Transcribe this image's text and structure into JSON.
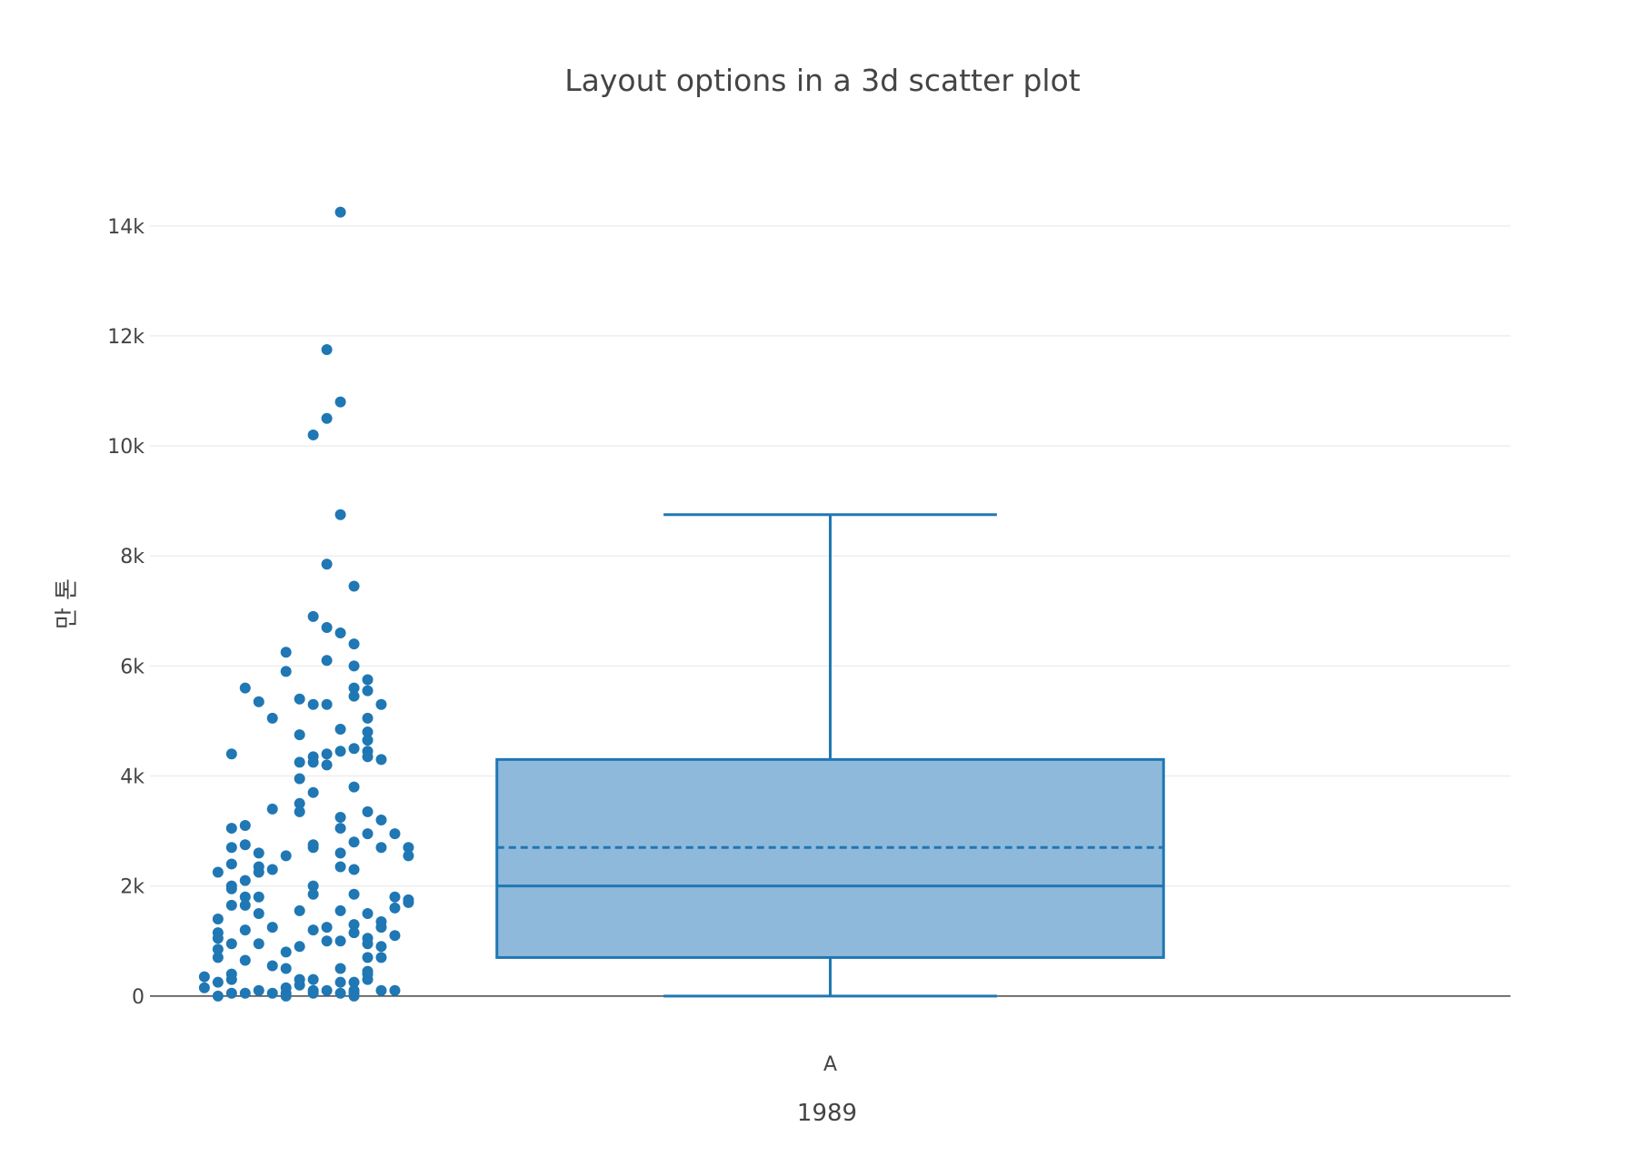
{
  "chart_data": {
    "type": "box",
    "title": "Layout options in a 3d scatter plot",
    "xlabel": "1989",
    "ylabel": "만 톤",
    "ylim": [
      -300,
      15300
    ],
    "yticks": [
      0,
      2000,
      4000,
      6000,
      8000,
      10000,
      12000,
      14000
    ],
    "ytick_labels": [
      "0",
      "2k",
      "4k",
      "6k",
      "8k",
      "10k",
      "12k",
      "14k"
    ],
    "categories": [
      "A"
    ],
    "grid": true,
    "color": "#1f77b4",
    "fill_color": "#8fb9da",
    "series": [
      {
        "category": "A",
        "box": {
          "lowerfence": 0,
          "q1": 700,
          "median": 2000,
          "mean": 2700,
          "q3": 4300,
          "upperfence": 8750
        },
        "points": [
          [
            -0.36,
            14250
          ],
          [
            -0.37,
            11750
          ],
          [
            -0.36,
            10800
          ],
          [
            -0.37,
            10500
          ],
          [
            -0.38,
            10200
          ],
          [
            -0.36,
            8750
          ],
          [
            -0.37,
            7850
          ],
          [
            -0.35,
            7450
          ],
          [
            -0.38,
            6900
          ],
          [
            -0.37,
            6700
          ],
          [
            -0.36,
            6600
          ],
          [
            -0.35,
            6400
          ],
          [
            -0.4,
            6250
          ],
          [
            -0.37,
            6100
          ],
          [
            -0.35,
            6000
          ],
          [
            -0.4,
            5900
          ],
          [
            -0.34,
            5750
          ],
          [
            -0.43,
            5600
          ],
          [
            -0.35,
            5600
          ],
          [
            -0.34,
            5550
          ],
          [
            -0.35,
            5450
          ],
          [
            -0.42,
            5350
          ],
          [
            -0.39,
            5400
          ],
          [
            -0.38,
            5300
          ],
          [
            -0.33,
            5300
          ],
          [
            -0.37,
            5300
          ],
          [
            -0.41,
            5050
          ],
          [
            -0.34,
            5050
          ],
          [
            -0.36,
            4850
          ],
          [
            -0.39,
            4750
          ],
          [
            -0.34,
            4800
          ],
          [
            -0.34,
            4650
          ],
          [
            -0.35,
            4500
          ],
          [
            -0.34,
            4450
          ],
          [
            -0.36,
            4450
          ],
          [
            -0.37,
            4400
          ],
          [
            -0.44,
            4400
          ],
          [
            -0.34,
            4350
          ],
          [
            -0.39,
            4250
          ],
          [
            -0.38,
            4250
          ],
          [
            -0.37,
            4200
          ],
          [
            -0.33,
            4300
          ],
          [
            -0.38,
            4350
          ],
          [
            -0.39,
            3950
          ],
          [
            -0.35,
            3800
          ],
          [
            -0.38,
            3700
          ],
          [
            -0.39,
            3500
          ],
          [
            -0.41,
            3400
          ],
          [
            -0.34,
            3350
          ],
          [
            -0.39,
            3350
          ],
          [
            -0.36,
            3250
          ],
          [
            -0.33,
            3200
          ],
          [
            -0.43,
            3100
          ],
          [
            -0.44,
            3050
          ],
          [
            -0.36,
            3050
          ],
          [
            -0.34,
            2950
          ],
          [
            -0.32,
            2950
          ],
          [
            -0.38,
            2750
          ],
          [
            -0.43,
            2750
          ],
          [
            -0.44,
            2700
          ],
          [
            -0.35,
            2800
          ],
          [
            -0.38,
            2700
          ],
          [
            -0.33,
            2700
          ],
          [
            -0.31,
            2700
          ],
          [
            -0.36,
            2600
          ],
          [
            -0.42,
            2600
          ],
          [
            -0.4,
            2550
          ],
          [
            -0.31,
            2550
          ],
          [
            -0.44,
            2400
          ],
          [
            -0.42,
            2350
          ],
          [
            -0.35,
            2300
          ],
          [
            -0.41,
            2300
          ],
          [
            -0.42,
            2250
          ],
          [
            -0.45,
            2250
          ],
          [
            -0.36,
            2350
          ],
          [
            -0.43,
            2100
          ],
          [
            -0.38,
            2000
          ],
          [
            -0.44,
            2000
          ],
          [
            -0.44,
            1950
          ],
          [
            -0.43,
            1800
          ],
          [
            -0.38,
            1850
          ],
          [
            -0.35,
            1850
          ],
          [
            -0.42,
            1800
          ],
          [
            -0.32,
            1800
          ],
          [
            -0.31,
            1750
          ],
          [
            -0.31,
            1700
          ],
          [
            -0.44,
            1650
          ],
          [
            -0.43,
            1650
          ],
          [
            -0.39,
            1550
          ],
          [
            -0.36,
            1550
          ],
          [
            -0.42,
            1500
          ],
          [
            -0.34,
            1500
          ],
          [
            -0.45,
            1400
          ],
          [
            -0.32,
            1600
          ],
          [
            -0.33,
            1350
          ],
          [
            -0.35,
            1300
          ],
          [
            -0.41,
            1250
          ],
          [
            -0.37,
            1250
          ],
          [
            -0.43,
            1200
          ],
          [
            -0.45,
            1150
          ],
          [
            -0.38,
            1200
          ],
          [
            -0.33,
            1250
          ],
          [
            -0.32,
            1100
          ],
          [
            -0.35,
            1150
          ],
          [
            -0.36,
            1000
          ],
          [
            -0.34,
            1050
          ],
          [
            -0.45,
            1050
          ],
          [
            -0.42,
            950
          ],
          [
            -0.44,
            950
          ],
          [
            -0.37,
            1000
          ],
          [
            -0.39,
            900
          ],
          [
            -0.34,
            950
          ],
          [
            -0.45,
            850
          ],
          [
            -0.4,
            800
          ],
          [
            -0.33,
            900
          ],
          [
            -0.45,
            700
          ],
          [
            -0.43,
            650
          ],
          [
            -0.34,
            700
          ],
          [
            -0.33,
            700
          ],
          [
            -0.41,
            550
          ],
          [
            -0.4,
            500
          ],
          [
            -0.36,
            500
          ],
          [
            -0.34,
            450
          ],
          [
            -0.34,
            400
          ],
          [
            -0.46,
            350
          ],
          [
            -0.44,
            400
          ],
          [
            -0.39,
            300
          ],
          [
            -0.38,
            300
          ],
          [
            -0.36,
            250
          ],
          [
            -0.34,
            300
          ],
          [
            -0.45,
            250
          ],
          [
            -0.44,
            300
          ],
          [
            -0.35,
            250
          ],
          [
            -0.39,
            200
          ],
          [
            -0.46,
            150
          ],
          [
            -0.4,
            150
          ],
          [
            -0.38,
            100
          ],
          [
            -0.37,
            100
          ],
          [
            -0.35,
            100
          ],
          [
            -0.33,
            100
          ],
          [
            -0.32,
            100
          ],
          [
            -0.42,
            100
          ],
          [
            -0.44,
            50
          ],
          [
            -0.4,
            50
          ],
          [
            -0.35,
            50
          ],
          [
            -0.38,
            50
          ],
          [
            -0.43,
            50
          ],
          [
            -0.36,
            50
          ],
          [
            -0.41,
            50
          ],
          [
            -0.45,
            0
          ],
          [
            -0.4,
            0
          ],
          [
            -0.35,
            0
          ]
        ]
      }
    ]
  }
}
